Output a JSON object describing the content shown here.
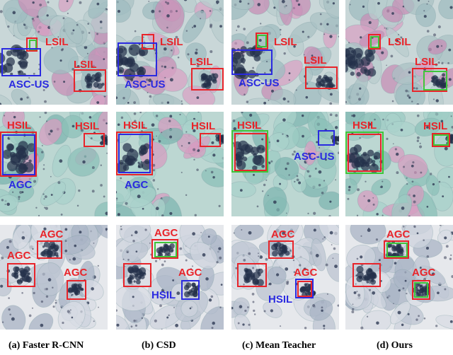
{
  "colors": {
    "lsil": "#e8242a",
    "hsil": "#e8242a",
    "agc": "#e8242a",
    "asc_us": "#2a2ae0",
    "hsil_fp": "#2a2ae0",
    "agc_fp": "#2a2ae0",
    "green": "#3fc53a"
  },
  "captions": [
    "(a) Faster R-CNN",
    "(b) CSD",
    "(c) Mean Teacher",
    "(d) Ours"
  ],
  "rows": [
    {
      "name": "row-lsil",
      "labels": [
        "LSIL",
        "LSIL",
        "ASC-US"
      ]
    },
    {
      "name": "row-hsil",
      "labels": [
        "HSIL",
        "HSIL",
        "AGC",
        "ASC-US"
      ]
    },
    {
      "name": "row-agc",
      "labels": [
        "AGC",
        "AGC",
        "AGC",
        "HSIL"
      ]
    }
  ]
}
